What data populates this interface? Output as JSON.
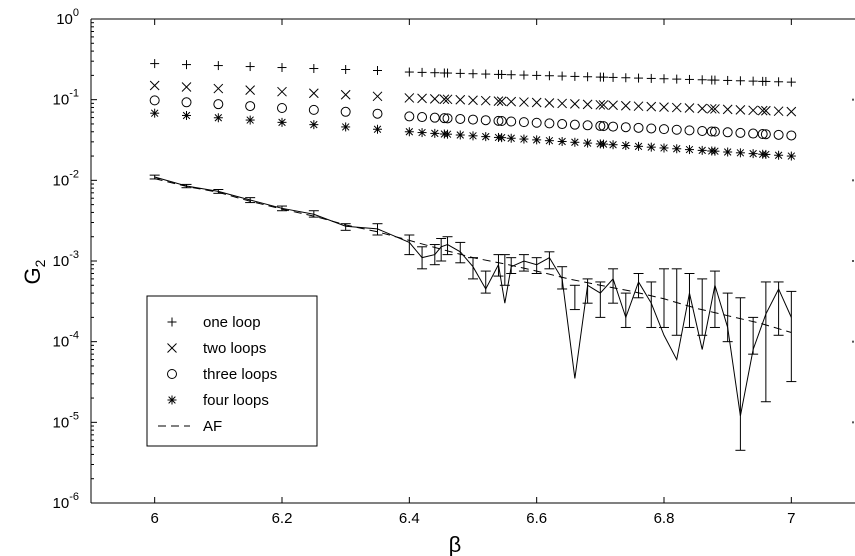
{
  "chart_data": {
    "type": "scatter",
    "xlabel": "β",
    "ylabel": "G",
    "ylabel_sub": "2",
    "xlim": [
      5.9,
      7.1
    ],
    "ylim": [
      1e-06,
      1
    ],
    "yscale": "log",
    "grid": false,
    "legend_placement": "lower-left",
    "x_ticks": [
      "6",
      "6.2",
      "6.4",
      "6.6",
      "6.8",
      "7"
    ],
    "y_ticks": [
      {
        "base": "10",
        "exp": "0"
      },
      {
        "base": "10",
        "exp": "-1"
      },
      {
        "base": "10",
        "exp": "-2"
      },
      {
        "base": "10",
        "exp": "-3"
      },
      {
        "base": "10",
        "exp": "-4"
      },
      {
        "base": "10",
        "exp": "-5"
      },
      {
        "base": "10",
        "exp": "-6"
      }
    ],
    "legend": [
      {
        "label": "one loop",
        "marker": "plus"
      },
      {
        "label": "two loops",
        "marker": "cross"
      },
      {
        "label": "three loops",
        "marker": "circle"
      },
      {
        "label": "four loops",
        "marker": "star"
      },
      {
        "label": "AF",
        "marker": "dashed-line"
      }
    ],
    "x_sparse": [
      6.0,
      6.05,
      6.1,
      6.15,
      6.2,
      6.25,
      6.3,
      6.35
    ],
    "x_dense_range": [
      6.4,
      7.0
    ],
    "series": [
      {
        "name": "one loop",
        "marker": "plus",
        "start": 0.28,
        "end_sparse": 0.23,
        "start_dense": 0.22,
        "end": 0.165
      },
      {
        "name": "two loops",
        "marker": "cross",
        "start": 0.15,
        "end_sparse": 0.11,
        "start_dense": 0.105,
        "end": 0.071
      },
      {
        "name": "three loops",
        "marker": "circle",
        "start": 0.098,
        "end_sparse": 0.067,
        "start_dense": 0.062,
        "end": 0.036
      },
      {
        "name": "four loops",
        "marker": "star",
        "start": 0.068,
        "end_sparse": 0.043,
        "start_dense": 0.04,
        "end": 0.02
      }
    ],
    "measured": {
      "x": [
        6.0,
        6.05,
        6.1,
        6.15,
        6.2,
        6.25,
        6.3,
        6.35,
        6.4,
        6.42,
        6.44,
        6.45,
        6.46,
        6.48,
        6.5,
        6.52,
        6.54,
        6.55,
        6.56,
        6.58,
        6.6,
        6.62,
        6.64,
        6.66,
        6.68,
        6.7,
        6.72,
        6.74,
        6.76,
        6.78,
        6.8,
        6.82,
        6.84,
        6.86,
        6.88,
        6.9,
        6.92,
        6.94,
        6.96,
        6.98,
        7.0
      ],
      "y": [
        0.011,
        0.0085,
        0.0073,
        0.0057,
        0.0045,
        0.0038,
        0.0027,
        0.0025,
        0.0017,
        0.0011,
        0.0012,
        0.0015,
        0.0016,
        0.0013,
        0.00085,
        0.00045,
        0.0009,
        0.0003,
        0.00085,
        0.001,
        0.0009,
        0.0011,
        0.0006,
        3.5e-05,
        0.0005,
        0.0004,
        0.0006,
        0.0002,
        0.00055,
        0.0003,
        0.00012,
        6e-05,
        0.0004,
        8e-05,
        0.0005,
        0.00015,
        1.2e-05,
        8e-05,
        0.00022,
        0.00045,
        0.0002
      ],
      "err_low": [
        0.0104,
        0.0081,
        0.0069,
        0.0053,
        0.0042,
        0.0035,
        0.0024,
        0.0021,
        0.0012,
        0.0008,
        0.0009,
        0.001,
        0.0012,
        0.00095,
        0.0006,
        0.0004,
        0.00065,
        0.0005,
        0.0007,
        0.00075,
        0.0007,
        0.0008,
        0.00045,
        0.00025,
        0.0003,
        0.0002,
        0.0003,
        0.00015,
        0.00035,
        0.00015,
        0.00015,
        0.00012,
        0.00015,
        0.00012,
        0.00015,
        0.0001,
        4.5e-06,
        7e-05,
        1.8e-05,
        0.00012,
        3.2e-05
      ],
      "err_high": [
        0.0116,
        0.0089,
        0.0077,
        0.0061,
        0.0048,
        0.0042,
        0.0029,
        0.0029,
        0.0021,
        0.0015,
        0.0016,
        0.0019,
        0.002,
        0.0017,
        0.0011,
        0.00075,
        0.0012,
        0.0012,
        0.0011,
        0.0012,
        0.0011,
        0.0013,
        0.00085,
        0.0005,
        0.0006,
        0.00055,
        0.0008,
        0.0004,
        0.0007,
        0.00055,
        0.0008,
        0.0008,
        0.0007,
        0.0006,
        0.00075,
        0.0004,
        0.00035,
        0.0002,
        0.00055,
        0.00055,
        0.00042
      ]
    },
    "af_curve": {
      "x": [
        6.0,
        6.05,
        6.1,
        6.15,
        6.2,
        6.25,
        6.3,
        6.35,
        6.4,
        6.45,
        6.5,
        6.55,
        6.6,
        6.65,
        6.7,
        6.75,
        6.8,
        6.85,
        6.9,
        6.95,
        7.0
      ],
      "y": [
        0.0105,
        0.0084,
        0.0071,
        0.0055,
        0.0044,
        0.0036,
        0.0028,
        0.0023,
        0.0018,
        0.0014,
        0.0011,
        0.00092,
        0.00075,
        0.0006,
        0.0005,
        0.00042,
        0.00034,
        0.00026,
        0.00021,
        0.00017,
        0.00013
      ]
    }
  }
}
